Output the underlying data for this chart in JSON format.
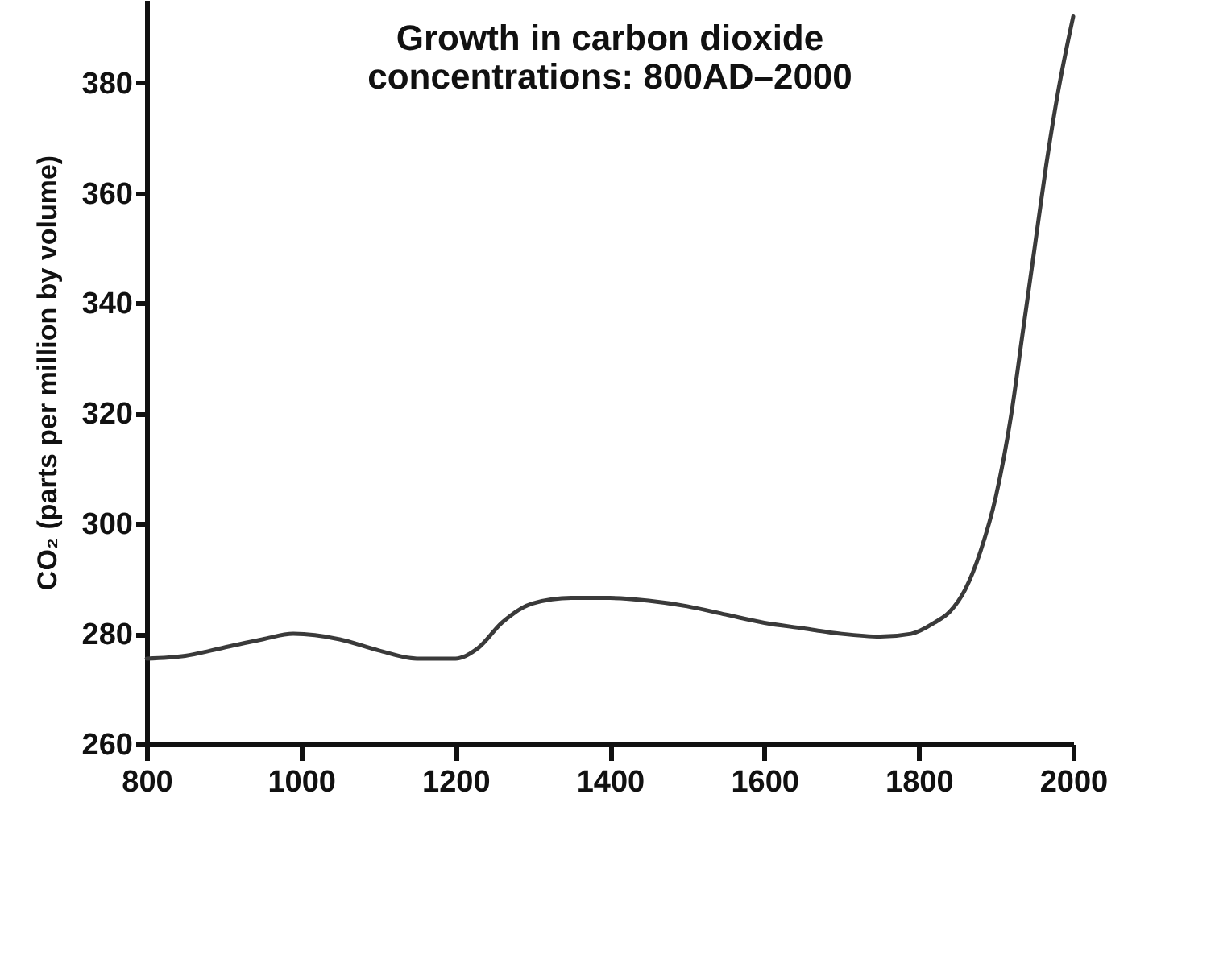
{
  "chart_data": {
    "type": "line",
    "title": [
      "Growth in carbon dioxide",
      "concentrations: 800AD–2000"
    ],
    "ylabel": "CO₂  (parts per million by volume)",
    "x": [
      800,
      850,
      900,
      950,
      990,
      1050,
      1100,
      1150,
      1200,
      1230,
      1260,
      1300,
      1350,
      1400,
      1450,
      1500,
      1550,
      1600,
      1650,
      1700,
      1750,
      1790,
      1820,
      1840,
      1860,
      1880,
      1900,
      1920,
      1935,
      1950,
      1965,
      1980,
      2000
    ],
    "series": [
      {
        "color": "#3a3a3a",
        "values": [
          275.5,
          276,
          277.5,
          279,
          280,
          279,
          277,
          275.5,
          275.5,
          277.5,
          282,
          285.5,
          286.5,
          286.5,
          286,
          285,
          283.5,
          282,
          281,
          280,
          279.5,
          280,
          282,
          284,
          288,
          295,
          305,
          320,
          335,
          350,
          365,
          378,
          392
        ]
      }
    ],
    "xlim": [
      800,
      2000
    ],
    "xticks": [
      800,
      1000,
      1200,
      1400,
      1600,
      1800,
      2000
    ],
    "ylim": [
      260,
      395
    ],
    "yticks": [
      260,
      280,
      300,
      320,
      340,
      360,
      380
    ],
    "grid": false,
    "marker": "none",
    "line_style": "solid"
  }
}
